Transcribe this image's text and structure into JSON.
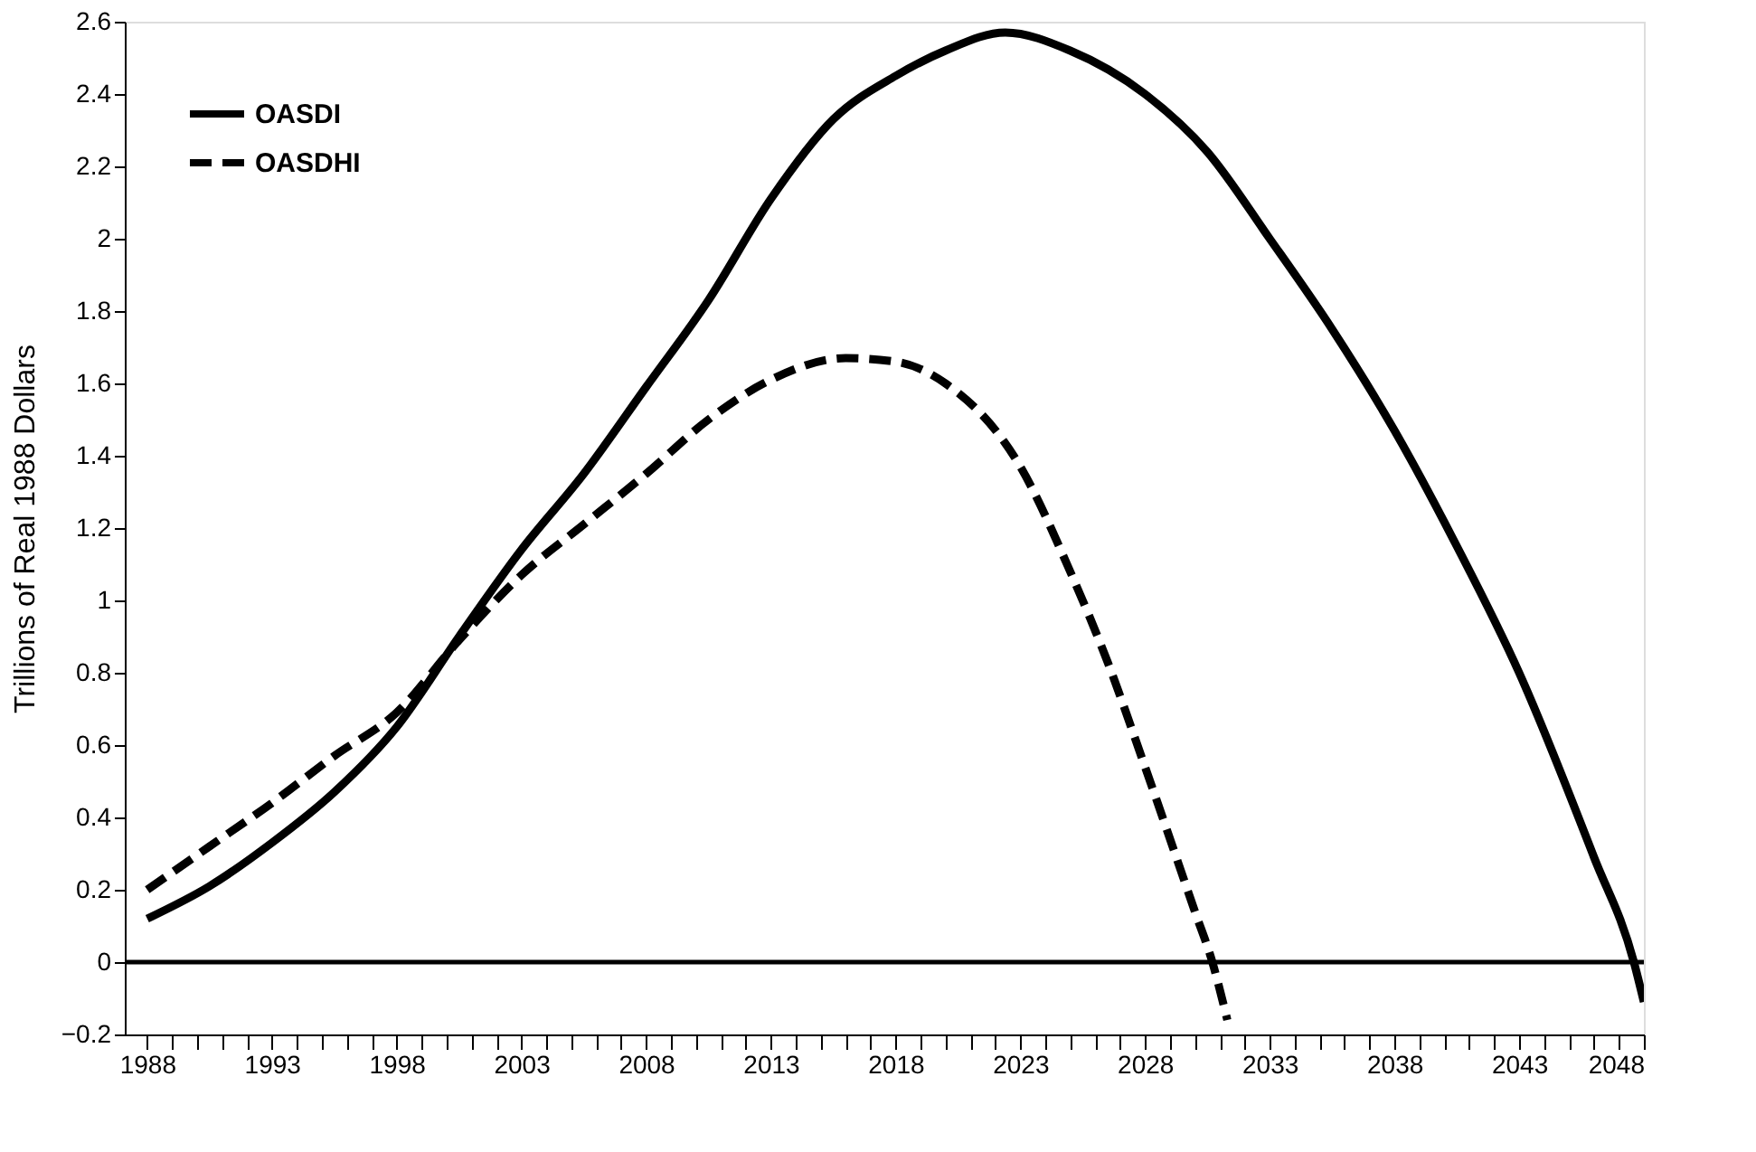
{
  "chart_data": {
    "type": "line",
    "ylabel": "Trillions of Real 1988 Dollars",
    "series": [
      {
        "name": "OASDI",
        "color": "#000000",
        "line_style": "solid",
        "x": [
          1988,
          1990.5,
          1993,
          1995.5,
          1998,
          2000.5,
          2003,
          2005.5,
          2008,
          2010.5,
          2013,
          2015.5,
          2018,
          2020,
          2022.4,
          2025,
          2028,
          2030.5,
          2033,
          2035.5,
          2038,
          2040.5,
          2043,
          2046,
          2047.6,
          2048
        ],
        "values": [
          0.12,
          0.21,
          0.33,
          0.47,
          0.65,
          0.9,
          1.14,
          1.35,
          1.59,
          1.83,
          2.11,
          2.33,
          2.45,
          2.52,
          2.57,
          2.52,
          2.4,
          2.24,
          2.0,
          1.75,
          1.47,
          1.15,
          0.8,
          0.29,
          0,
          -0.11
        ]
      },
      {
        "name": "OASDHI",
        "color": "#000000",
        "line_style": "dashed",
        "x": [
          1988,
          1990.5,
          1993,
          1995.5,
          1998,
          2000.5,
          2003,
          2005.5,
          2008,
          2010.5,
          2013,
          2016,
          2018,
          2020,
          2023,
          2025,
          2026.5,
          2028,
          2030,
          2030.7,
          2031.3
        ],
        "values": [
          0.2,
          0.32,
          0.44,
          0.57,
          0.69,
          0.89,
          1.07,
          1.21,
          1.35,
          1.5,
          1.61,
          1.67,
          1.66,
          1.6,
          1.37,
          1.08,
          0.83,
          0.54,
          0.14,
          0,
          -0.16
        ]
      }
    ],
    "xlim": [
      1987.1,
      2048
    ],
    "ylim": [
      -0.2,
      2.6
    ],
    "xticks": [
      1988,
      {
        "value": 1989,
        "label": null
      },
      {
        "value": 1990,
        "label": null
      },
      {
        "value": 1991,
        "label": null
      },
      {
        "value": 1992,
        "label": null
      },
      1993,
      {
        "value": 1994,
        "label": null
      },
      {
        "value": 1995,
        "label": null
      },
      {
        "value": 1996,
        "label": null
      },
      {
        "value": 1997,
        "label": null
      },
      1998,
      {
        "value": 1999,
        "label": null
      },
      {
        "value": 2000,
        "label": null
      },
      {
        "value": 2001,
        "label": null
      },
      {
        "value": 2002,
        "label": null
      },
      2003,
      {
        "value": 2004,
        "label": null
      },
      {
        "value": 2005,
        "label": null
      },
      {
        "value": 2006,
        "label": null
      },
      {
        "value": 2007,
        "label": null
      },
      2008,
      {
        "value": 2009,
        "label": null
      },
      {
        "value": 2010,
        "label": null
      },
      {
        "value": 2011,
        "label": null
      },
      {
        "value": 2012,
        "label": null
      },
      2013,
      {
        "value": 2014,
        "label": null
      },
      {
        "value": 2015,
        "label": null
      },
      {
        "value": 2016,
        "label": null
      },
      {
        "value": 2017,
        "label": null
      },
      2018,
      {
        "value": 2019,
        "label": null
      },
      {
        "value": 2020,
        "label": null
      },
      {
        "value": 2021,
        "label": null
      },
      {
        "value": 2022,
        "label": null
      },
      2023,
      {
        "value": 2024,
        "label": null
      },
      {
        "value": 2025,
        "label": null
      },
      {
        "value": 2026,
        "label": null
      },
      {
        "value": 2027,
        "label": null
      },
      2028,
      {
        "value": 2029,
        "label": null
      },
      {
        "value": 2030,
        "label": null
      },
      {
        "value": 2031,
        "label": null
      },
      {
        "value": 2032,
        "label": null
      },
      2033,
      {
        "value": 2034,
        "label": null
      },
      {
        "value": 2035,
        "label": null
      },
      {
        "value": 2036,
        "label": null
      },
      {
        "value": 2037,
        "label": null
      },
      2038,
      {
        "value": 2039,
        "label": null
      },
      {
        "value": 2040,
        "label": null
      },
      {
        "value": 2041,
        "label": null
      },
      {
        "value": 2042,
        "label": null
      },
      2043,
      {
        "value": 2044,
        "label": null
      },
      {
        "value": 2045,
        "label": null
      },
      {
        "value": 2046,
        "label": null
      },
      {
        "value": 2047,
        "label": null
      },
      2048
    ],
    "yticks": [
      -0.2,
      0,
      0.2,
      0.4,
      0.6,
      0.8,
      1,
      1.2,
      1.4,
      1.6,
      1.8,
      2,
      2.2,
      2.4,
      2.6
    ],
    "ref_lines": [
      {
        "axis": "y",
        "value": 0,
        "color": "#000000"
      }
    ],
    "grid": false,
    "legend": "top left",
    "marker": "none"
  }
}
